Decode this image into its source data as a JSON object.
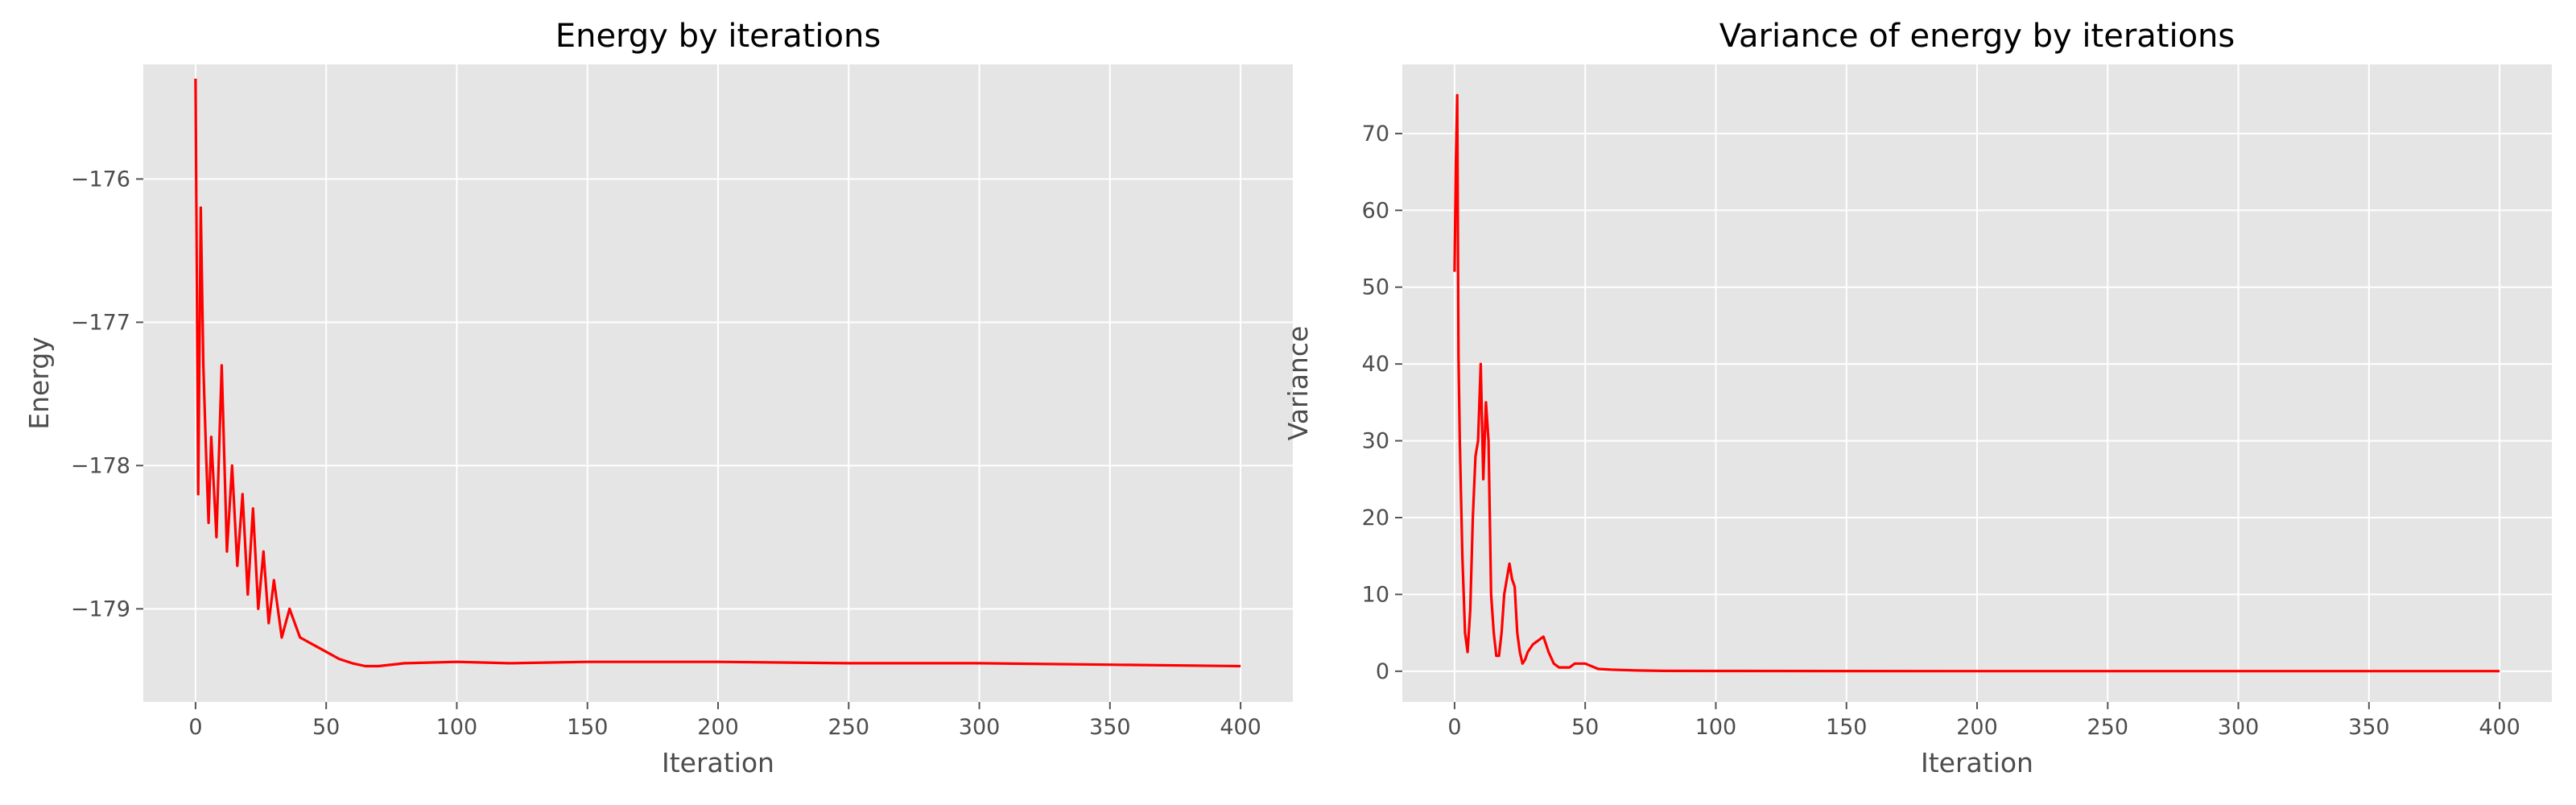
{
  "chart_data": [
    {
      "type": "line",
      "title": "Energy by iterations",
      "xlabel": "Iteration",
      "ylabel": "Energy",
      "xlim": [
        -20,
        420
      ],
      "ylim": [
        -179.65,
        -175.2
      ],
      "xticks": [
        0,
        50,
        100,
        150,
        200,
        250,
        300,
        350,
        400
      ],
      "xtick_labels": [
        "0",
        "50",
        "100",
        "150",
        "200",
        "250",
        "300",
        "350",
        "400"
      ],
      "yticks": [
        -176,
        -177,
        -178,
        -179
      ],
      "ytick_labels": [
        "−176",
        "−177",
        "−178",
        "−179"
      ],
      "grid": true,
      "color": "#ff0000",
      "series": [
        {
          "x": [
            0,
            1,
            2,
            3,
            4,
            5,
            6,
            8,
            10,
            12,
            14,
            16,
            18,
            20,
            22,
            24,
            26,
            28,
            30,
            33,
            36,
            40,
            45,
            50,
            55,
            60,
            65,
            70,
            80,
            100,
            120,
            150,
            200,
            250,
            300,
            350,
            400
          ],
          "y": [
            -175.3,
            -178.2,
            -176.2,
            -177.3,
            -177.9,
            -178.4,
            -177.8,
            -178.5,
            -177.3,
            -178.6,
            -178.0,
            -178.7,
            -178.2,
            -178.9,
            -178.3,
            -179.0,
            -178.6,
            -179.1,
            -178.8,
            -179.2,
            -179.0,
            -179.2,
            -179.25,
            -179.3,
            -179.35,
            -179.38,
            -179.4,
            -179.4,
            -179.38,
            -179.37,
            -179.38,
            -179.37,
            -179.37,
            -179.38,
            -179.38,
            -179.39,
            -179.4
          ]
        }
      ]
    },
    {
      "type": "line",
      "title": "Variance of energy by iterations",
      "xlabel": "Iteration",
      "ylabel": "Variance",
      "xlim": [
        -20,
        420
      ],
      "ylim": [
        -4,
        79
      ],
      "xticks": [
        0,
        50,
        100,
        150,
        200,
        250,
        300,
        350,
        400
      ],
      "xtick_labels": [
        "0",
        "50",
        "100",
        "150",
        "200",
        "250",
        "300",
        "350",
        "400"
      ],
      "yticks": [
        0,
        10,
        20,
        30,
        40,
        50,
        60,
        70
      ],
      "ytick_labels": [
        "0",
        "10",
        "20",
        "30",
        "40",
        "50",
        "60",
        "70"
      ],
      "grid": true,
      "color": "#ff0000",
      "series": [
        {
          "x": [
            0,
            0.5,
            1,
            1.5,
            2,
            3,
            4,
            5,
            6,
            7,
            8,
            9,
            10,
            11,
            12,
            13,
            14,
            15,
            16,
            17,
            18,
            19,
            20,
            21,
            22,
            23,
            24,
            25,
            26,
            27,
            28,
            30,
            32,
            34,
            35,
            36,
            38,
            40,
            42,
            44,
            46,
            48,
            50,
            55,
            60,
            70,
            80,
            100,
            150,
            200,
            300,
            400
          ],
          "y": [
            52,
            66,
            75,
            41,
            30,
            15,
            5,
            2.5,
            8,
            20,
            28,
            30,
            40,
            25,
            35,
            30,
            10,
            5,
            2,
            2,
            5,
            10,
            12,
            14,
            12,
            11,
            5,
            2.5,
            1,
            1.5,
            2.5,
            3.5,
            4,
            4.5,
            3.5,
            2.5,
            1,
            0.5,
            0.5,
            0.5,
            1,
            1,
            1,
            0.3,
            0.2,
            0.1,
            0.05,
            0.03,
            0.02,
            0.01,
            0.01,
            0.01
          ]
        }
      ]
    }
  ]
}
